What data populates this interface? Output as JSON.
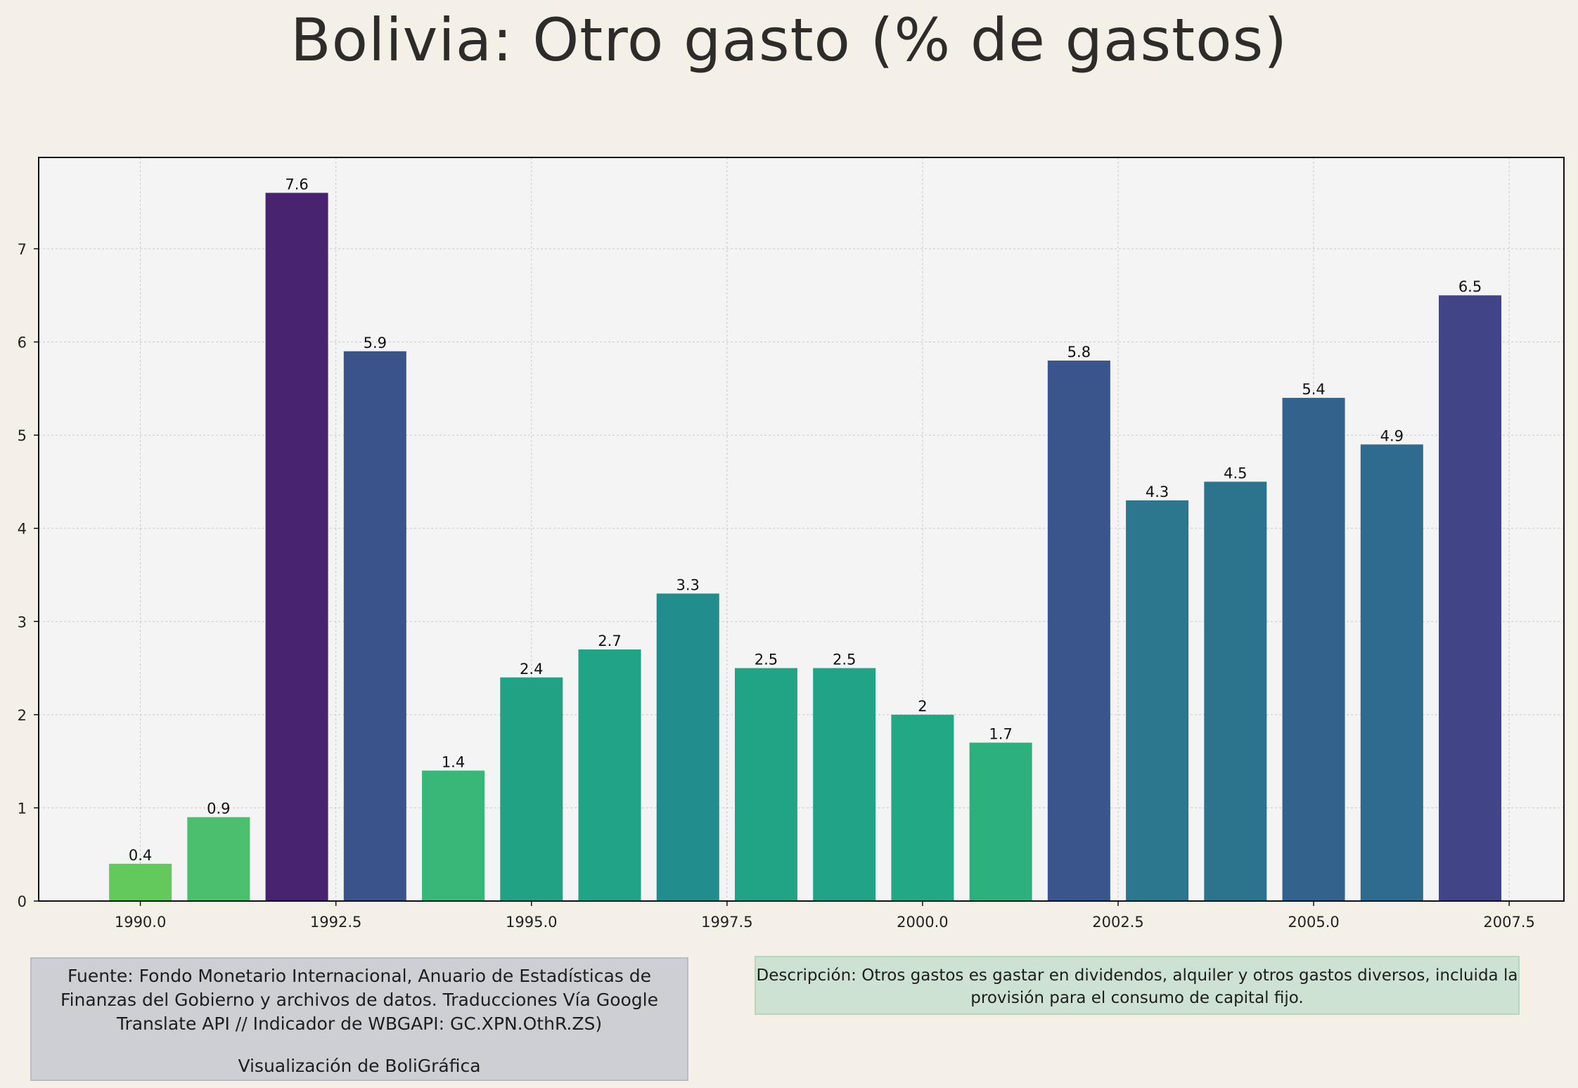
{
  "chart_data": {
    "type": "bar",
    "title": "Bolivia:  Otro gasto (% de gastos)",
    "xlabel": "",
    "ylabel": "",
    "x": [
      1990,
      1991,
      1992,
      1993,
      1994,
      1995,
      1996,
      1997,
      1998,
      1999,
      2000,
      2001,
      2002,
      2003,
      2004,
      2005,
      2006,
      2007
    ],
    "values": [
      0.4,
      0.9,
      7.6,
      5.9,
      1.4,
      2.4,
      2.7,
      3.3,
      2.5,
      2.5,
      2,
      1.7,
      5.8,
      4.3,
      4.5,
      5.4,
      4.9,
      6.5
    ],
    "value_labels": [
      "0.4",
      "0.9",
      "7.6",
      "5.9",
      "1.4",
      "2.4",
      "2.7",
      "3.3",
      "2.5",
      "2.5",
      "2",
      "1.7",
      "5.8",
      "4.3",
      "4.5",
      "5.4",
      "4.9",
      "6.5"
    ],
    "colors": [
      "#63c95c",
      "#4bbf6d",
      "#472370",
      "#3a538b",
      "#37b878",
      "#22a284",
      "#20a386",
      "#218e8d",
      "#21a385",
      "#20a386",
      "#22a884",
      "#2cb17e",
      "#3a548c",
      "#2c778e",
      "#2c738e",
      "#33628d",
      "#2e6b8e",
      "#414487"
    ],
    "xlim": [
      1988.7,
      2008.2
    ],
    "ylim": [
      0,
      7.98
    ],
    "xticks": [
      1990.0,
      1992.5,
      1995.0,
      1997.5,
      2000.0,
      2002.5,
      2005.0,
      2007.5
    ],
    "xtick_labels": [
      "1990.0",
      "1992.5",
      "1995.0",
      "1997.5",
      "2000.0",
      "2002.5",
      "2005.0",
      "2007.5"
    ],
    "yticks": [
      0,
      1,
      2,
      3,
      4,
      5,
      6,
      7
    ],
    "ytick_labels": [
      "0",
      "1",
      "2",
      "3",
      "4",
      "5",
      "6",
      "7"
    ],
    "grid": true,
    "legend": "none"
  },
  "source": {
    "text": "Fuente: Fondo Monetario Internacional, Anuario de Estadísticas de Finanzas del Gobierno y archivos de datos. Traducciones Vía Google Translate API // Indicador de WBGAPI: GC.XPN.OthR.ZS)",
    "credit": "Visualización de BoliGráfica"
  },
  "description": {
    "text": "Descripción: Otros gastos es gastar en dividendos, alquiler y otros gastos diversos, incluida la provisión para el consumo de capital fijo."
  },
  "colors": {
    "background": "#f4f0e8",
    "plot_background": "#f4f4f4",
    "source_box": "#cdcfd4",
    "description_box": "#cde2d2"
  }
}
